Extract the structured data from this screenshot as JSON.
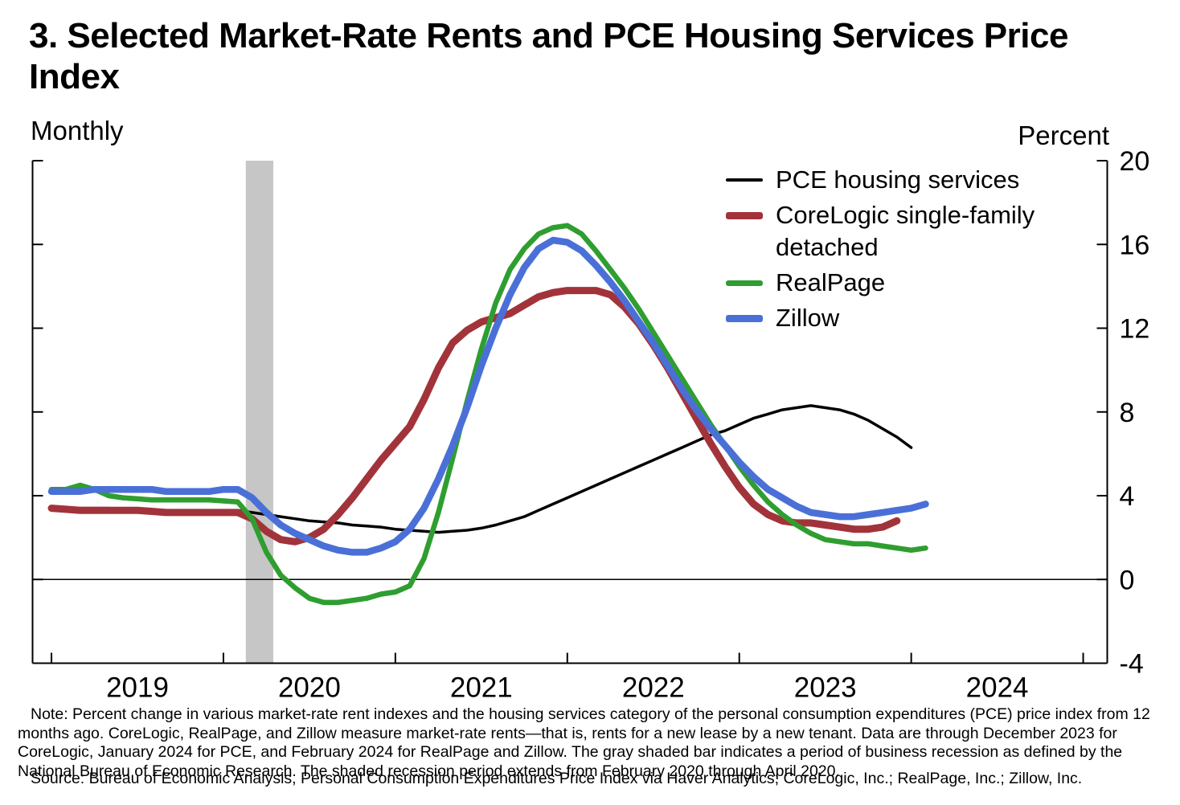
{
  "header": {
    "title": "3. Selected Market-Rate Rents and PCE Housing Services Price Index",
    "frequency_label": "Monthly",
    "unit_label": "Percent"
  },
  "chart_data": {
    "type": "line",
    "title": "Selected Market-Rate Rents and PCE Housing Services Price Index",
    "subtitle": "Monthly",
    "ylabel": "Percent",
    "xlabel": "",
    "grid": false,
    "legend_position": "upper-right-inside",
    "x_unit": "decimal_year",
    "xlim": [
      2018.89,
      2025.14
    ],
    "ylim": [
      -4,
      20
    ],
    "yticks": [
      -4,
      0,
      4,
      8,
      12,
      16,
      20
    ],
    "xticks_years": [
      2019,
      2020,
      2021,
      2022,
      2023,
      2024,
      2025
    ],
    "year_labels": [
      "2019",
      "2020",
      "2021",
      "2022",
      "2023",
      "2024"
    ],
    "zero_line": true,
    "recession_band": {
      "from": 2020.13,
      "to": 2020.29,
      "color": "#c6c6c6",
      "meaning": "NBER business recession, February 2020 through April 2020"
    },
    "series": [
      {
        "id": "pce",
        "name": "PCE housing services",
        "color": "#000000",
        "stroke_width": 3.5,
        "start": 2019.0,
        "step_months": 1,
        "last_observation": "January 2024",
        "values": [
          3.4,
          3.4,
          3.4,
          3.4,
          3.4,
          3.35,
          3.35,
          3.3,
          3.3,
          3.3,
          3.3,
          3.3,
          3.3,
          3.3,
          3.2,
          3.1,
          3.0,
          2.9,
          2.8,
          2.75,
          2.7,
          2.6,
          2.55,
          2.5,
          2.4,
          2.35,
          2.3,
          2.25,
          2.3,
          2.35,
          2.45,
          2.6,
          2.8,
          3.0,
          3.3,
          3.6,
          3.9,
          4.2,
          4.5,
          4.8,
          5.1,
          5.4,
          5.7,
          6.0,
          6.3,
          6.6,
          6.9,
          7.1,
          7.4,
          7.7,
          7.9,
          8.1,
          8.2,
          8.3,
          8.2,
          8.1,
          7.9,
          7.6,
          7.2,
          6.8,
          6.3
        ]
      },
      {
        "id": "corelogic",
        "name": "CoreLogic single-family detached",
        "color": "#A2333A",
        "stroke_width": 9,
        "start": 2019.0,
        "step_months": 1,
        "last_observation": "December 2023",
        "values": [
          3.4,
          3.35,
          3.3,
          3.3,
          3.3,
          3.3,
          3.3,
          3.25,
          3.2,
          3.2,
          3.2,
          3.2,
          3.2,
          3.2,
          2.9,
          2.3,
          1.9,
          1.8,
          2.0,
          2.4,
          3.1,
          3.9,
          4.8,
          5.7,
          6.5,
          7.3,
          8.6,
          10.1,
          11.3,
          11.9,
          12.3,
          12.5,
          12.7,
          13.1,
          13.5,
          13.7,
          13.8,
          13.8,
          13.8,
          13.6,
          13.0,
          12.2,
          11.2,
          10.1,
          8.9,
          7.7,
          6.5,
          5.4,
          4.4,
          3.6,
          3.1,
          2.8,
          2.7,
          2.7,
          2.6,
          2.5,
          2.4,
          2.4,
          2.5,
          2.8
        ]
      },
      {
        "id": "realpage",
        "name": "RealPage",
        "color": "#2F9E30",
        "stroke_width": 6.5,
        "start": 2019.0,
        "step_months": 1,
        "last_observation": "February 2024",
        "values": [
          4.3,
          4.3,
          4.5,
          4.3,
          4.0,
          3.9,
          3.85,
          3.8,
          3.8,
          3.8,
          3.8,
          3.8,
          3.75,
          3.7,
          2.9,
          1.3,
          0.2,
          -0.4,
          -0.9,
          -1.1,
          -1.1,
          -1.0,
          -0.9,
          -0.7,
          -0.6,
          -0.3,
          1.0,
          3.2,
          5.8,
          8.5,
          11.0,
          13.2,
          14.8,
          15.8,
          16.5,
          16.8,
          16.9,
          16.5,
          15.7,
          14.8,
          13.9,
          12.9,
          11.8,
          10.7,
          9.6,
          8.5,
          7.4,
          6.4,
          5.4,
          4.5,
          3.7,
          3.1,
          2.6,
          2.2,
          1.9,
          1.8,
          1.7,
          1.7,
          1.6,
          1.5,
          1.4,
          1.5
        ]
      },
      {
        "id": "zillow",
        "name": "Zillow",
        "color": "#4A70D8",
        "stroke_width": 8.5,
        "start": 2019.0,
        "step_months": 1,
        "last_observation": "February 2024",
        "values": [
          4.2,
          4.2,
          4.2,
          4.3,
          4.3,
          4.3,
          4.3,
          4.3,
          4.2,
          4.2,
          4.2,
          4.2,
          4.3,
          4.3,
          3.9,
          3.2,
          2.6,
          2.2,
          1.9,
          1.6,
          1.4,
          1.3,
          1.3,
          1.5,
          1.8,
          2.4,
          3.4,
          4.8,
          6.4,
          8.2,
          10.2,
          12.0,
          13.6,
          14.9,
          15.8,
          16.2,
          16.1,
          15.7,
          15.0,
          14.2,
          13.3,
          12.3,
          11.3,
          10.2,
          9.1,
          8.1,
          7.2,
          6.4,
          5.6,
          4.9,
          4.3,
          3.9,
          3.5,
          3.2,
          3.1,
          3.0,
          3.0,
          3.1,
          3.2,
          3.3,
          3.4,
          3.6
        ]
      }
    ]
  },
  "note": "Note: Percent change in various market-rate rent indexes and the housing services category of the personal consumption expenditures (PCE) price index from 12 months ago. CoreLogic, RealPage, and Zillow measure market-rate rents—that is, rents for a new lease by a new tenant. Data are through December 2023 for CoreLogic, January 2024 for PCE, and February 2024 for RealPage and Zillow. The gray shaded bar indicates a period of business recession as defined by the National Bureau of Economic Research. The shaded recession period extends from February 2020 through April 2020.",
  "source": "Source: Bureau of Economic Analysis, Personal Consumption Expenditures Price Index via Haver Analytics; CoreLogic, Inc.; RealPage, Inc.; Zillow, Inc."
}
